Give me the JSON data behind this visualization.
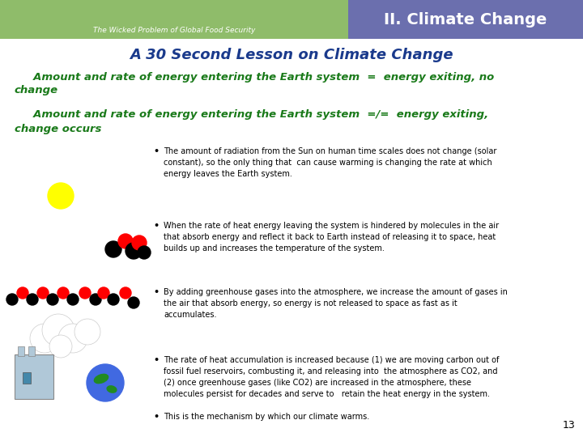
{
  "bg_color": "#ffffff",
  "header_bg_color": "#6B6FAE",
  "header_text": "II. Climate Change",
  "header_text_color": "#ffffff",
  "header_font_size": 14,
  "img_bg_color": "#8fbc6a",
  "img_text": "The Wicked Problem of Global Food Security",
  "img_text_color": "#ffffff",
  "title": "A 30 Second Lesson on Climate Change",
  "title_color": "#1a3a8c",
  "title_font_size": 13,
  "green_color": "#1a7a1a",
  "green_font_size": 9.5,
  "line1_part1": "     Amount and rate of energy entering the Earth system  =  energy exiting, no",
  "line1_part2": "change",
  "line2_part1": "     Amount and rate of energy entering the Earth system  =/=  energy exiting,",
  "line2_part2": "change occurs",
  "bullet_font_size": 7.0,
  "bullet_color": "#000000",
  "bullet_texts": [
    "The amount of radiation from the Sun on human time scales does not change (solar\nconstant), so the only thing that  can cause warming is changing the rate at which\nenergy leaves the Earth system.",
    "When the rate of heat energy leaving the system is hindered by molecules in the air\nthat absorb energy and reflect it back to Earth instead of releasing it to space, heat\nbuilds up and increases the temperature of the system.",
    "By adding greenhouse gases into the atmosphere, we increase the amount of gases in\nthe air that absorb energy, so energy is not released to space as fast as it\naccumulates.",
    "The rate of heat accumulation is increased because (1) we are moving carbon out of\nfossil fuel reservoirs, combusting it, and releasing into  the atmosphere as CO2, and\n(2) once greenhouse gases (like CO2) are increased in the atmosphere, these\nmolecules persist for decades and serve to   retain the heat energy in the system.",
    "This is the mechanism by which our climate warms."
  ],
  "page_number": "13"
}
